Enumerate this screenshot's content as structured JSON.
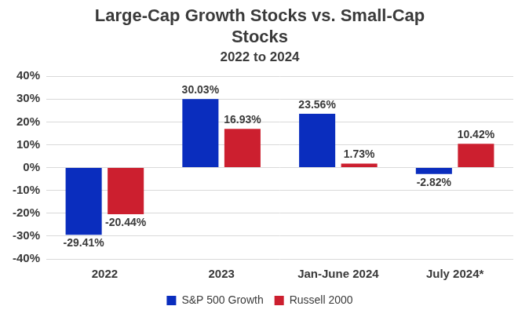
{
  "chart_data": {
    "type": "bar",
    "title": "Large-Cap Growth Stocks vs. Small-Cap Stocks",
    "subtitle": "2022 to 2024",
    "categories": [
      "2022",
      "2023",
      "Jan-June 2024",
      "July 2024*"
    ],
    "series": [
      {
        "name": "S&P 500 Growth",
        "color": "#0a2dbe",
        "values": [
          -29.41,
          30.03,
          23.56,
          -2.82
        ],
        "value_labels": [
          "-29.41%",
          "30.03%",
          "23.56%",
          "-2.82%"
        ]
      },
      {
        "name": "Russell 2000",
        "color": "#cc1f2f",
        "values": [
          -20.44,
          16.93,
          1.73,
          10.42
        ],
        "value_labels": [
          "-20.44%",
          "16.93%",
          "1.73%",
          "10.42%"
        ]
      }
    ],
    "ylim": [
      -40,
      40
    ],
    "yticks": [
      {
        "value": -40,
        "label": "-40%"
      },
      {
        "value": -30,
        "label": "-30%"
      },
      {
        "value": -20,
        "label": "-20%"
      },
      {
        "value": -10,
        "label": "-10%"
      },
      {
        "value": 0,
        "label": "0%"
      },
      {
        "value": 10,
        "label": "10%"
      },
      {
        "value": 20,
        "label": "20%"
      },
      {
        "value": 30,
        "label": "30%"
      },
      {
        "value": 40,
        "label": "40%"
      }
    ],
    "grid": true,
    "legend": "bottom",
    "data_labels": true
  }
}
